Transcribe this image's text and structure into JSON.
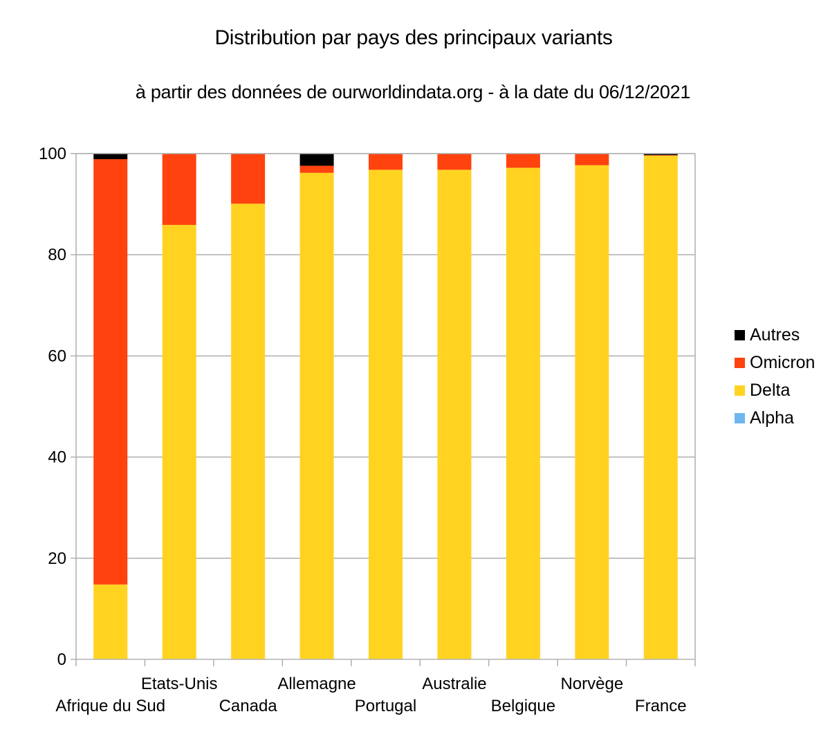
{
  "chart_data": {
    "type": "bar",
    "stacked": true,
    "title": "Distribution par pays des principaux variants",
    "subtitle": "à partir des données de ourworldindata.org - à la date du 06/12/2021",
    "xlabel": "",
    "ylabel": "",
    "ylim": [
      0,
      100
    ],
    "yticks": [
      0,
      20,
      40,
      60,
      80,
      100
    ],
    "grid": true,
    "legend_position": "right",
    "categories": [
      "Afrique du Sud",
      "Etats-Unis",
      "Canada",
      "Allemagne",
      "Portugal",
      "Australie",
      "Belgique",
      "Norvège",
      "France"
    ],
    "series": [
      {
        "name": "Alpha",
        "color": "#6fb7f0",
        "values": [
          0,
          0,
          0,
          0,
          0,
          0,
          0,
          0,
          0
        ]
      },
      {
        "name": "Delta",
        "color": "#ffd320",
        "values": [
          14.8,
          85.9,
          90.1,
          96.2,
          96.8,
          96.8,
          97.2,
          97.7,
          99.6
        ]
      },
      {
        "name": "Omicron",
        "color": "#ff420e",
        "values": [
          84.1,
          14.1,
          9.9,
          1.4,
          3.2,
          3.2,
          2.8,
          2.3,
          0.1
        ]
      },
      {
        "name": "Autres",
        "color": "#000000",
        "values": [
          1.1,
          0,
          0,
          2.4,
          0,
          0,
          0,
          0,
          0.3
        ]
      }
    ]
  }
}
